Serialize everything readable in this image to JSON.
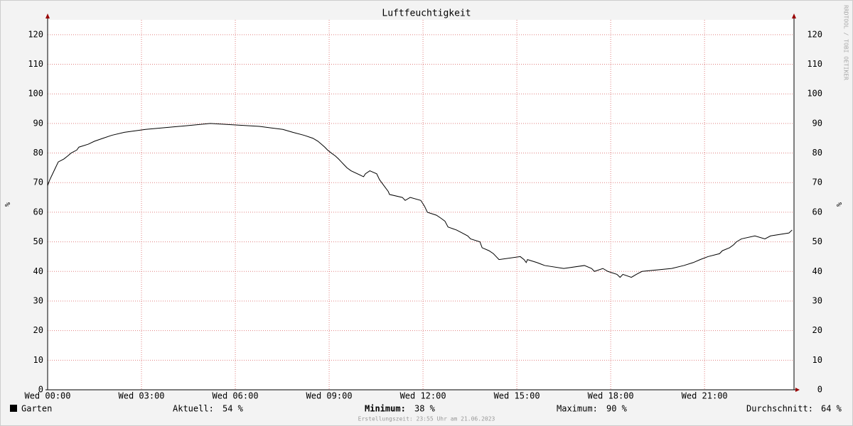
{
  "chart_data": {
    "type": "line",
    "title": "Luftfeuchtigkeit",
    "y_label": "%",
    "y2_label": "%",
    "watermark": "RRDTOOL / TOBI OETIKER",
    "footer": "Erstellungszeit: 23:55 Uhr am 21.06.2023",
    "x": [
      0,
      0.07,
      0.16,
      0.25,
      0.34,
      0.52,
      0.64,
      0.75,
      0.93,
      1.0,
      1.3,
      1.5,
      1.77,
      2.05,
      2.45,
      3.13,
      4.2,
      5.2,
      6.77,
      7.52,
      7.84,
      8.2,
      8.48,
      8.64,
      8.75,
      8.86,
      8.95,
      9.07,
      9.2,
      9.3,
      9.39,
      9.48,
      9.57,
      9.7,
      10.1,
      10.16,
      10.3,
      10.52,
      10.61,
      10.75,
      10.89,
      10.93,
      11.34,
      11.43,
      11.59,
      11.93,
      12.05,
      12.14,
      12.43,
      12.57,
      12.7,
      12.8,
      13.07,
      13.25,
      13.43,
      13.52,
      13.82,
      13.89,
      14.11,
      14.25,
      14.34,
      14.43,
      15.11,
      15.23,
      15.3,
      15.34,
      15.64,
      15.89,
      16.5,
      17.16,
      17.39,
      17.48,
      17.75,
      17.91,
      18.2,
      18.3,
      18.39,
      18.66,
      18.82,
      19.0,
      19.95,
      20.34,
      20.64,
      20.86,
      21.11,
      21.48,
      21.57,
      21.8,
      21.93,
      22.02,
      22.18,
      22.61,
      22.93,
      23.11,
      23.7,
      23.8
    ],
    "series": [
      {
        "name": "Garten",
        "color": "#000000",
        "values": [
          69,
          71,
          73,
          75,
          77,
          78,
          79,
          80,
          81,
          82,
          83,
          84,
          85,
          86,
          87,
          88,
          89,
          90,
          89,
          88,
          87,
          86,
          85,
          84,
          83,
          82,
          81,
          80,
          79,
          78,
          77,
          76,
          75,
          74,
          72,
          73,
          74,
          73,
          71,
          69,
          67,
          66,
          65,
          64,
          65,
          64,
          62,
          60,
          59,
          58,
          57,
          55,
          54,
          53,
          52,
          51,
          50,
          48,
          47,
          46,
          45,
          44,
          45,
          44,
          43,
          44,
          43,
          42,
          41,
          42,
          41,
          40,
          41,
          40,
          39,
          38,
          39,
          38,
          39,
          40,
          41,
          42,
          43,
          44,
          45,
          46,
          47,
          48,
          49,
          50,
          51,
          52,
          51,
          52,
          53,
          54
        ]
      }
    ],
    "stats": [
      {
        "label": "Aktuell:",
        "value": 54,
        "value_label": "54 %"
      },
      {
        "label": "Minimum:",
        "value": 38,
        "value_label": "38 %"
      },
      {
        "label": "Maximum:",
        "value": 90,
        "value_label": "90 %"
      },
      {
        "label": "Durchschnitt:",
        "value": 64,
        "value_label": "64 %"
      }
    ],
    "xlim": [
      0,
      23.86
    ],
    "xticks": [
      {
        "value": 0,
        "label": "Wed 00:00"
      },
      {
        "value": 3,
        "label": "Wed 03:00"
      },
      {
        "value": 6,
        "label": "Wed 06:00"
      },
      {
        "value": 9,
        "label": "Wed 09:00"
      },
      {
        "value": 12,
        "label": "Wed 12:00"
      },
      {
        "value": 15,
        "label": "Wed 15:00"
      },
      {
        "value": 18,
        "label": "Wed 18:00"
      },
      {
        "value": 21,
        "label": "Wed 21:00"
      }
    ],
    "ylim": [
      0,
      125
    ],
    "yticks": [
      0,
      10,
      20,
      30,
      40,
      50,
      60,
      70,
      80,
      90,
      100,
      110,
      120
    ],
    "grid": true
  }
}
